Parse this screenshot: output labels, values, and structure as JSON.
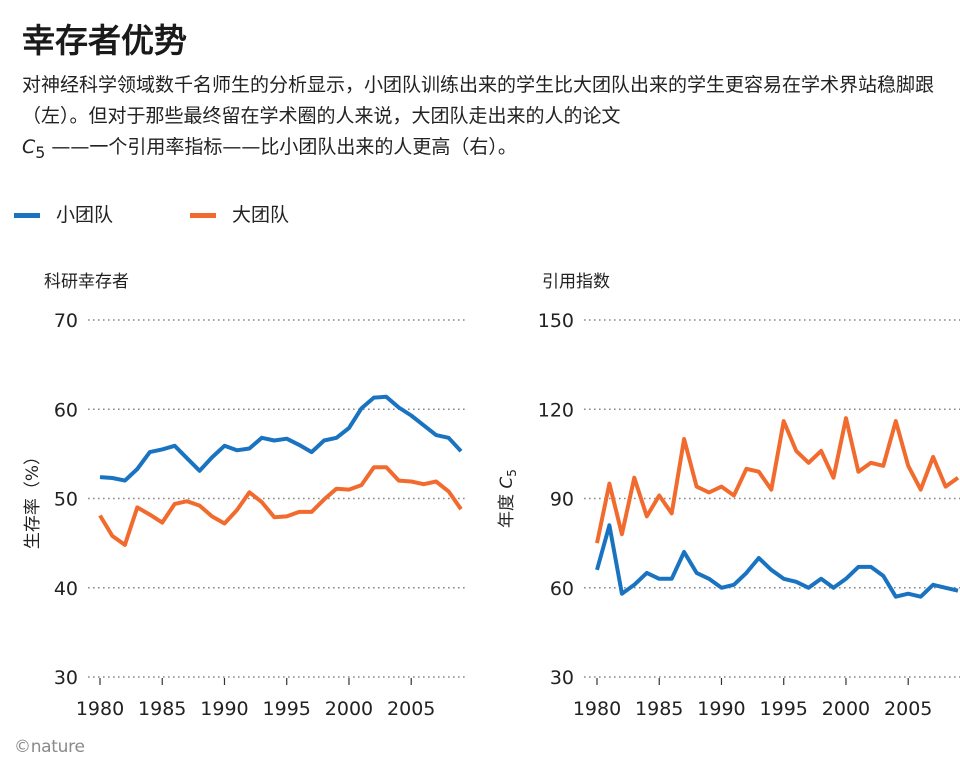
{
  "title": "幸存者优势",
  "subtitle": "对神经科学领域数千名师生的分析显示，小团队训练出来的学生比大团队出来的学生更容易在学术界站稳脚跟（左）。但对于那些最终留在学术圈的人来说，大团队走出来的人的论文",
  "subtitle_tail": " ——一个引用率指标——比小团队出来的人更高（右）。",
  "metric_symbol": "C",
  "metric_subscript": "5",
  "legend": [
    {
      "label": "小团队",
      "color": "#1a73c1"
    },
    {
      "label": "大团队",
      "color": "#f26b2e"
    }
  ],
  "credit": "©nature",
  "colors": {
    "small": "#1a73c1",
    "large": "#f26b2e",
    "grid": "#888888",
    "text": "#222222"
  },
  "chart_data": [
    {
      "type": "line",
      "title": "科研幸存者",
      "ylabel": "生存率（%）",
      "xlabel": "",
      "ylim": [
        30,
        70
      ],
      "yticks": [
        30,
        40,
        50,
        60,
        70
      ],
      "xlim": [
        1980,
        2009
      ],
      "xticks": [
        1980,
        1985,
        1990,
        1995,
        2000,
        2005
      ],
      "grid": "horizontal-dotted",
      "x": [
        1980,
        1981,
        1982,
        1983,
        1984,
        1985,
        1986,
        1987,
        1988,
        1989,
        1990,
        1991,
        1992,
        1993,
        1994,
        1995,
        1996,
        1997,
        1998,
        1999,
        2000,
        2001,
        2002,
        2003,
        2004,
        2005,
        2006,
        2007,
        2008,
        2009
      ],
      "series": [
        {
          "name": "小团队",
          "values": [
            52.4,
            52.3,
            52.0,
            53.3,
            55.2,
            55.5,
            55.9,
            54.5,
            53.1,
            54.6,
            55.9,
            55.4,
            55.6,
            56.8,
            56.5,
            56.7,
            56.0,
            55.2,
            56.5,
            56.8,
            57.9,
            60.1,
            61.3,
            61.4,
            60.2,
            59.3,
            58.2,
            57.1,
            56.8,
            55.3
          ]
        },
        {
          "name": "大团队",
          "values": [
            48.1,
            45.8,
            44.8,
            49.0,
            48.2,
            47.3,
            49.4,
            49.7,
            49.2,
            48.0,
            47.2,
            48.7,
            50.7,
            49.6,
            47.9,
            48.0,
            48.5,
            48.5,
            49.9,
            51.1,
            51.0,
            51.5,
            53.5,
            53.5,
            52.0,
            51.9,
            51.6,
            51.9,
            50.8,
            48.8
          ]
        }
      ]
    },
    {
      "type": "line",
      "title": "引用指数",
      "ylabel": "年度 C5",
      "ylabel_prefix": "年度 ",
      "xlabel": "",
      "ylim": [
        30,
        150
      ],
      "yticks": [
        30,
        60,
        90,
        120,
        150
      ],
      "xlim": [
        1980,
        2009
      ],
      "xticks": [
        1980,
        1985,
        1990,
        1995,
        2000,
        2005
      ],
      "grid": "horizontal-dotted",
      "x": [
        1980,
        1981,
        1982,
        1983,
        1984,
        1985,
        1986,
        1987,
        1988,
        1989,
        1990,
        1991,
        1992,
        1993,
        1994,
        1995,
        1996,
        1997,
        1998,
        1999,
        2000,
        2001,
        2002,
        2003,
        2004,
        2005,
        2006,
        2007,
        2008,
        2009
      ],
      "series": [
        {
          "name": "小团队",
          "values": [
            66,
            81,
            58,
            61,
            65,
            63,
            63,
            72,
            65,
            63,
            60,
            61,
            65,
            70,
            66,
            63,
            62,
            60,
            63,
            60,
            63,
            67,
            67,
            64,
            57,
            58,
            57,
            61,
            60,
            59
          ]
        },
        {
          "name": "大团队",
          "values": [
            75,
            95,
            78,
            97,
            84,
            91,
            85,
            110,
            94,
            92,
            94,
            91,
            100,
            99,
            93,
            116,
            106,
            102,
            106,
            97,
            117,
            99,
            102,
            101,
            116,
            101,
            93,
            104,
            94,
            97
          ]
        }
      ]
    }
  ]
}
